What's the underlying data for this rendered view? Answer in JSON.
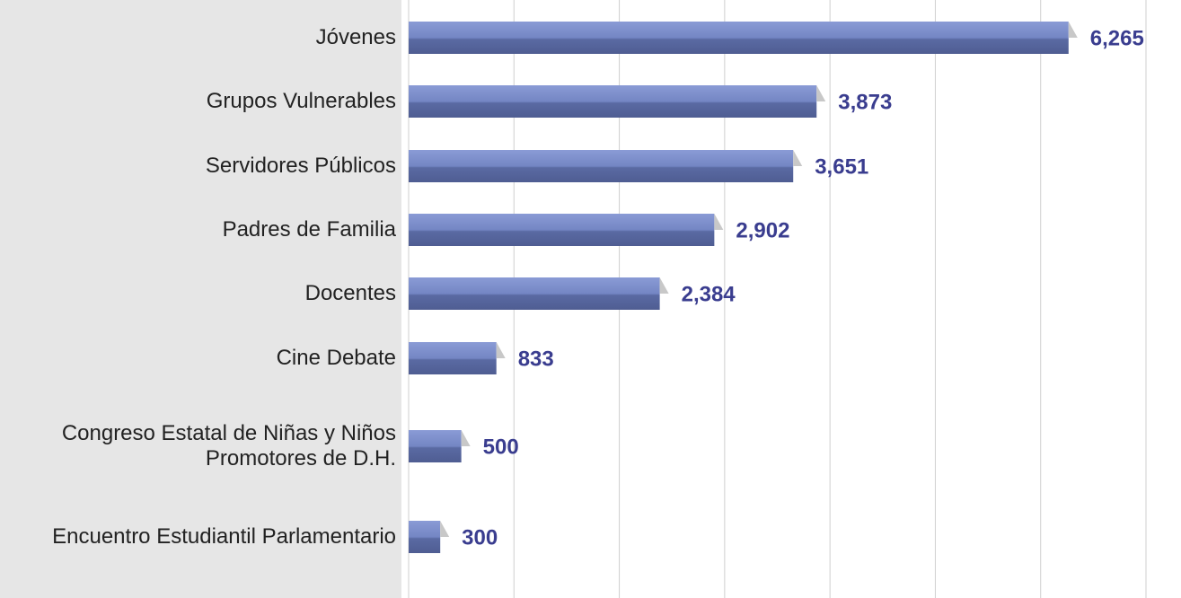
{
  "chart_data": {
    "type": "bar",
    "orientation": "horizontal",
    "categories": [
      "Jóvenes",
      "Grupos Vulnerables",
      "Servidores Públicos",
      "Padres de Familia",
      "Docentes",
      "Cine Debate",
      "Congreso Estatal de Niñas y Niños Promotores de D.H.",
      "Encuentro Estudiantil Parlamentario"
    ],
    "values": [
      6265,
      3873,
      3651,
      2902,
      2384,
      833,
      500,
      300
    ],
    "value_labels": [
      "6,265",
      "3,873",
      "3,651",
      "2,902",
      "2,384",
      "833",
      "500",
      "300"
    ],
    "color": "#6f80bd",
    "xlim": [
      0,
      7000
    ],
    "xticks": [
      0,
      1000,
      2000,
      3000,
      4000,
      5000,
      6000,
      7000
    ],
    "grid": true
  }
}
